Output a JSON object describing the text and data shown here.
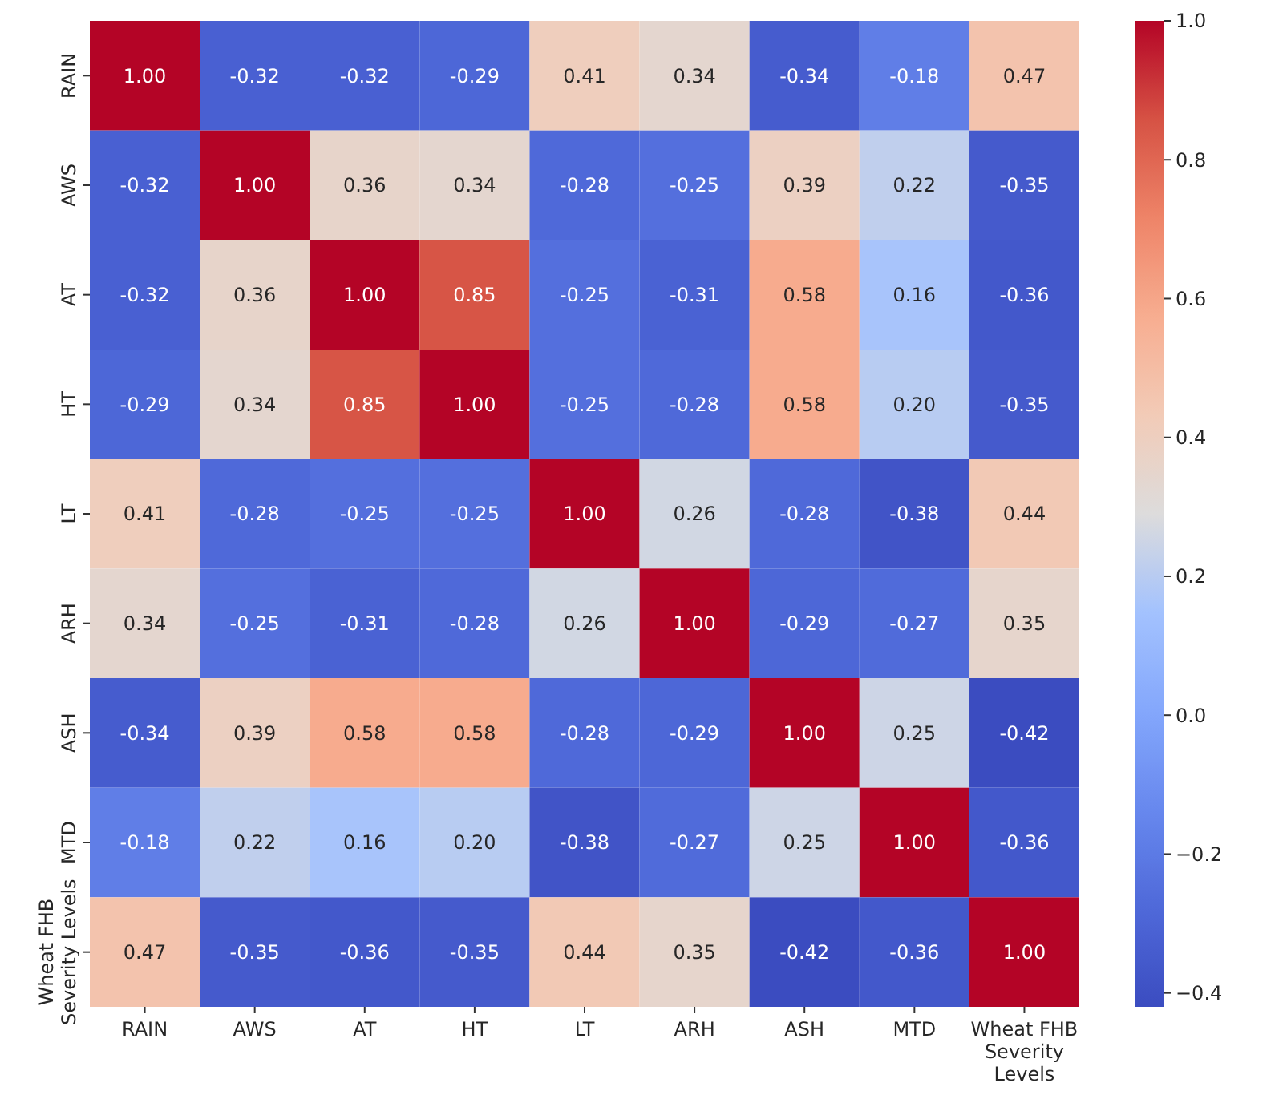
{
  "chart_data": {
    "type": "heatmap",
    "categories": [
      "RAIN",
      "AWS",
      "AT",
      "HT",
      "LT",
      "ARH",
      "ASH",
      "MTD",
      "Wheat FHB Severity Levels"
    ],
    "y_categories": [
      "RAIN",
      "AWS",
      "AT",
      "HT",
      "LT",
      "ARH",
      "ASH",
      "MTD",
      "Wheat FHB Severity Levels"
    ],
    "cells": [
      [
        1.0,
        -0.32,
        -0.32,
        -0.29,
        0.41,
        0.34,
        -0.34,
        -0.18,
        0.47
      ],
      [
        -0.32,
        1.0,
        0.36,
        0.34,
        -0.28,
        -0.25,
        0.39,
        0.22,
        -0.35
      ],
      [
        -0.32,
        0.36,
        1.0,
        0.85,
        -0.25,
        -0.31,
        0.58,
        0.16,
        -0.36
      ],
      [
        -0.29,
        0.34,
        0.85,
        1.0,
        -0.25,
        -0.28,
        0.58,
        0.2,
        -0.35
      ],
      [
        0.41,
        -0.28,
        -0.25,
        -0.25,
        1.0,
        0.26,
        -0.28,
        -0.38,
        0.44
      ],
      [
        0.34,
        -0.25,
        -0.31,
        -0.28,
        0.26,
        1.0,
        -0.29,
        -0.27,
        0.35
      ],
      [
        -0.34,
        0.39,
        0.58,
        0.58,
        -0.28,
        -0.29,
        1.0,
        0.25,
        -0.42
      ],
      [
        -0.18,
        0.22,
        0.16,
        0.2,
        -0.38,
        -0.27,
        0.25,
        1.0,
        -0.36
      ],
      [
        0.47,
        -0.35,
        -0.36,
        -0.35,
        0.44,
        0.35,
        -0.42,
        -0.36,
        1.0
      ]
    ],
    "cell_labels": [
      [
        "1.00",
        "-0.32",
        "-0.32",
        "-0.29",
        "0.41",
        "0.34",
        "-0.34",
        "-0.18",
        "0.47"
      ],
      [
        "-0.32",
        "1.00",
        "0.36",
        "0.34",
        "-0.28",
        "-0.25",
        "0.39",
        "0.22",
        "-0.35"
      ],
      [
        "-0.32",
        "0.36",
        "1.00",
        "0.85",
        "-0.25",
        "-0.31",
        "0.58",
        "0.16",
        "-0.36"
      ],
      [
        "-0.29",
        "0.34",
        "0.85",
        "1.00",
        "-0.25",
        "-0.28",
        "0.58",
        "0.20",
        "-0.35"
      ],
      [
        "0.41",
        "-0.28",
        "-0.25",
        "-0.25",
        "1.00",
        "0.26",
        "-0.28",
        "-0.38",
        "0.44"
      ],
      [
        "0.34",
        "-0.25",
        "-0.31",
        "-0.28",
        "0.26",
        "1.00",
        "-0.29",
        "-0.27",
        "0.35"
      ],
      [
        "-0.34",
        "0.39",
        "0.58",
        "0.58",
        "-0.28",
        "-0.29",
        "1.00",
        "0.25",
        "-0.42"
      ],
      [
        "-0.18",
        "0.22",
        "0.16",
        "0.20",
        "-0.38",
        "-0.27",
        "0.25",
        "1.00",
        "-0.36"
      ],
      [
        "0.47",
        "-0.35",
        "-0.36",
        "-0.35",
        "0.44",
        "0.35",
        "-0.42",
        "-0.36",
        "1.00"
      ]
    ],
    "clim": [
      -0.42,
      1.0
    ],
    "cticks": [
      -0.4,
      -0.2,
      {
        "value": 0,
        "label": "0.0"
      },
      0.2,
      0.4,
      0.6,
      0.8,
      {
        "value": 1,
        "label": "1.0"
      }
    ]
  }
}
